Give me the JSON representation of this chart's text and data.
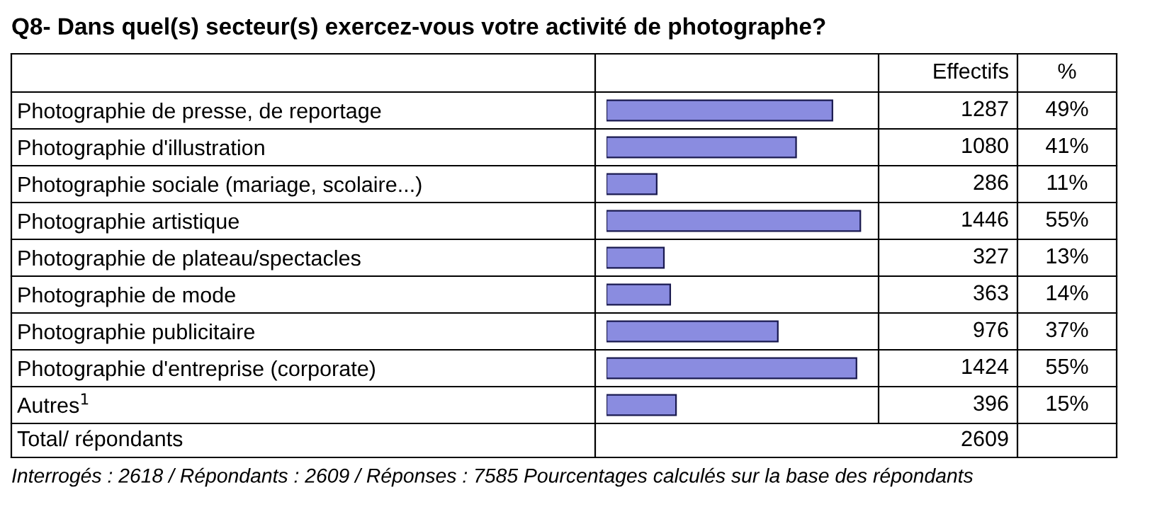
{
  "chart_data": {
    "type": "bar",
    "orientation": "horizontal",
    "title": "Q8- Dans quel(s) secteur(s) exercez-vous votre activité de photographe?",
    "categories": [
      "Photographie de presse, de reportage",
      "Photographie d'illustration",
      "Photographie sociale (mariage, scolaire...)",
      "Photographie artistique",
      "Photographie de plateau/spectacles",
      "Photographie de mode",
      "Photographie publicitaire",
      "Photographie d'entreprise (corporate)",
      "Autres$^{1}$"
    ],
    "values": [
      1287,
      1080,
      286,
      1446,
      327,
      363,
      976,
      1424,
      396
    ],
    "color": "#8a8ce0",
    "xlim": [
      0,
      1550
    ],
    "tick_labels": "y",
    "data_labels": true,
    "grid": false,
    "legend": false,
    "annotations": [
      "Effectifs",
      "%",
      "Total/ répondants",
      "2609",
      "Interrogés : 2618 / Répondants : 2609 / Réponses : 7585 Pourcentages calculés sur la base des répondants",
      "49%",
      "41%",
      "11%",
      "55%",
      "13%",
      "14%",
      "37%",
      "55%",
      "15%"
    ]
  }
}
